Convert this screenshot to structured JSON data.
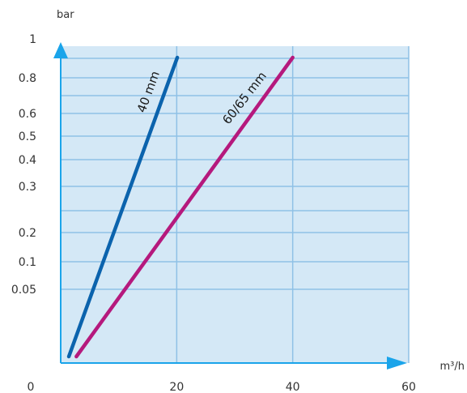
{
  "chart_data": {
    "type": "line",
    "ylabel": "bar",
    "xlabel": "m³/h",
    "x_ticks": [
      "0",
      "20",
      "40",
      "60"
    ],
    "y_ticks": [
      "1",
      "0.8",
      "0.6",
      "0.5",
      "0.4",
      "0.3",
      "0.2",
      "0.1",
      "0.05"
    ],
    "grid": true,
    "series": [
      {
        "name": "40 mm",
        "color": "#0b63ad",
        "points": [
          {
            "x": 1.4,
            "y": 0.0
          },
          {
            "x": 20.1,
            "y": 0.95
          }
        ]
      },
      {
        "name": "60/65 mm",
        "color": "#b5197d",
        "points": [
          {
            "x": 2.7,
            "y": 0.0
          },
          {
            "x": 40.0,
            "y": 0.95
          }
        ]
      }
    ],
    "colors": {
      "plot_background": "#d4e8f6",
      "gridline": "#8fc1e6",
      "axis_arrow": "#1aa4ea"
    }
  }
}
